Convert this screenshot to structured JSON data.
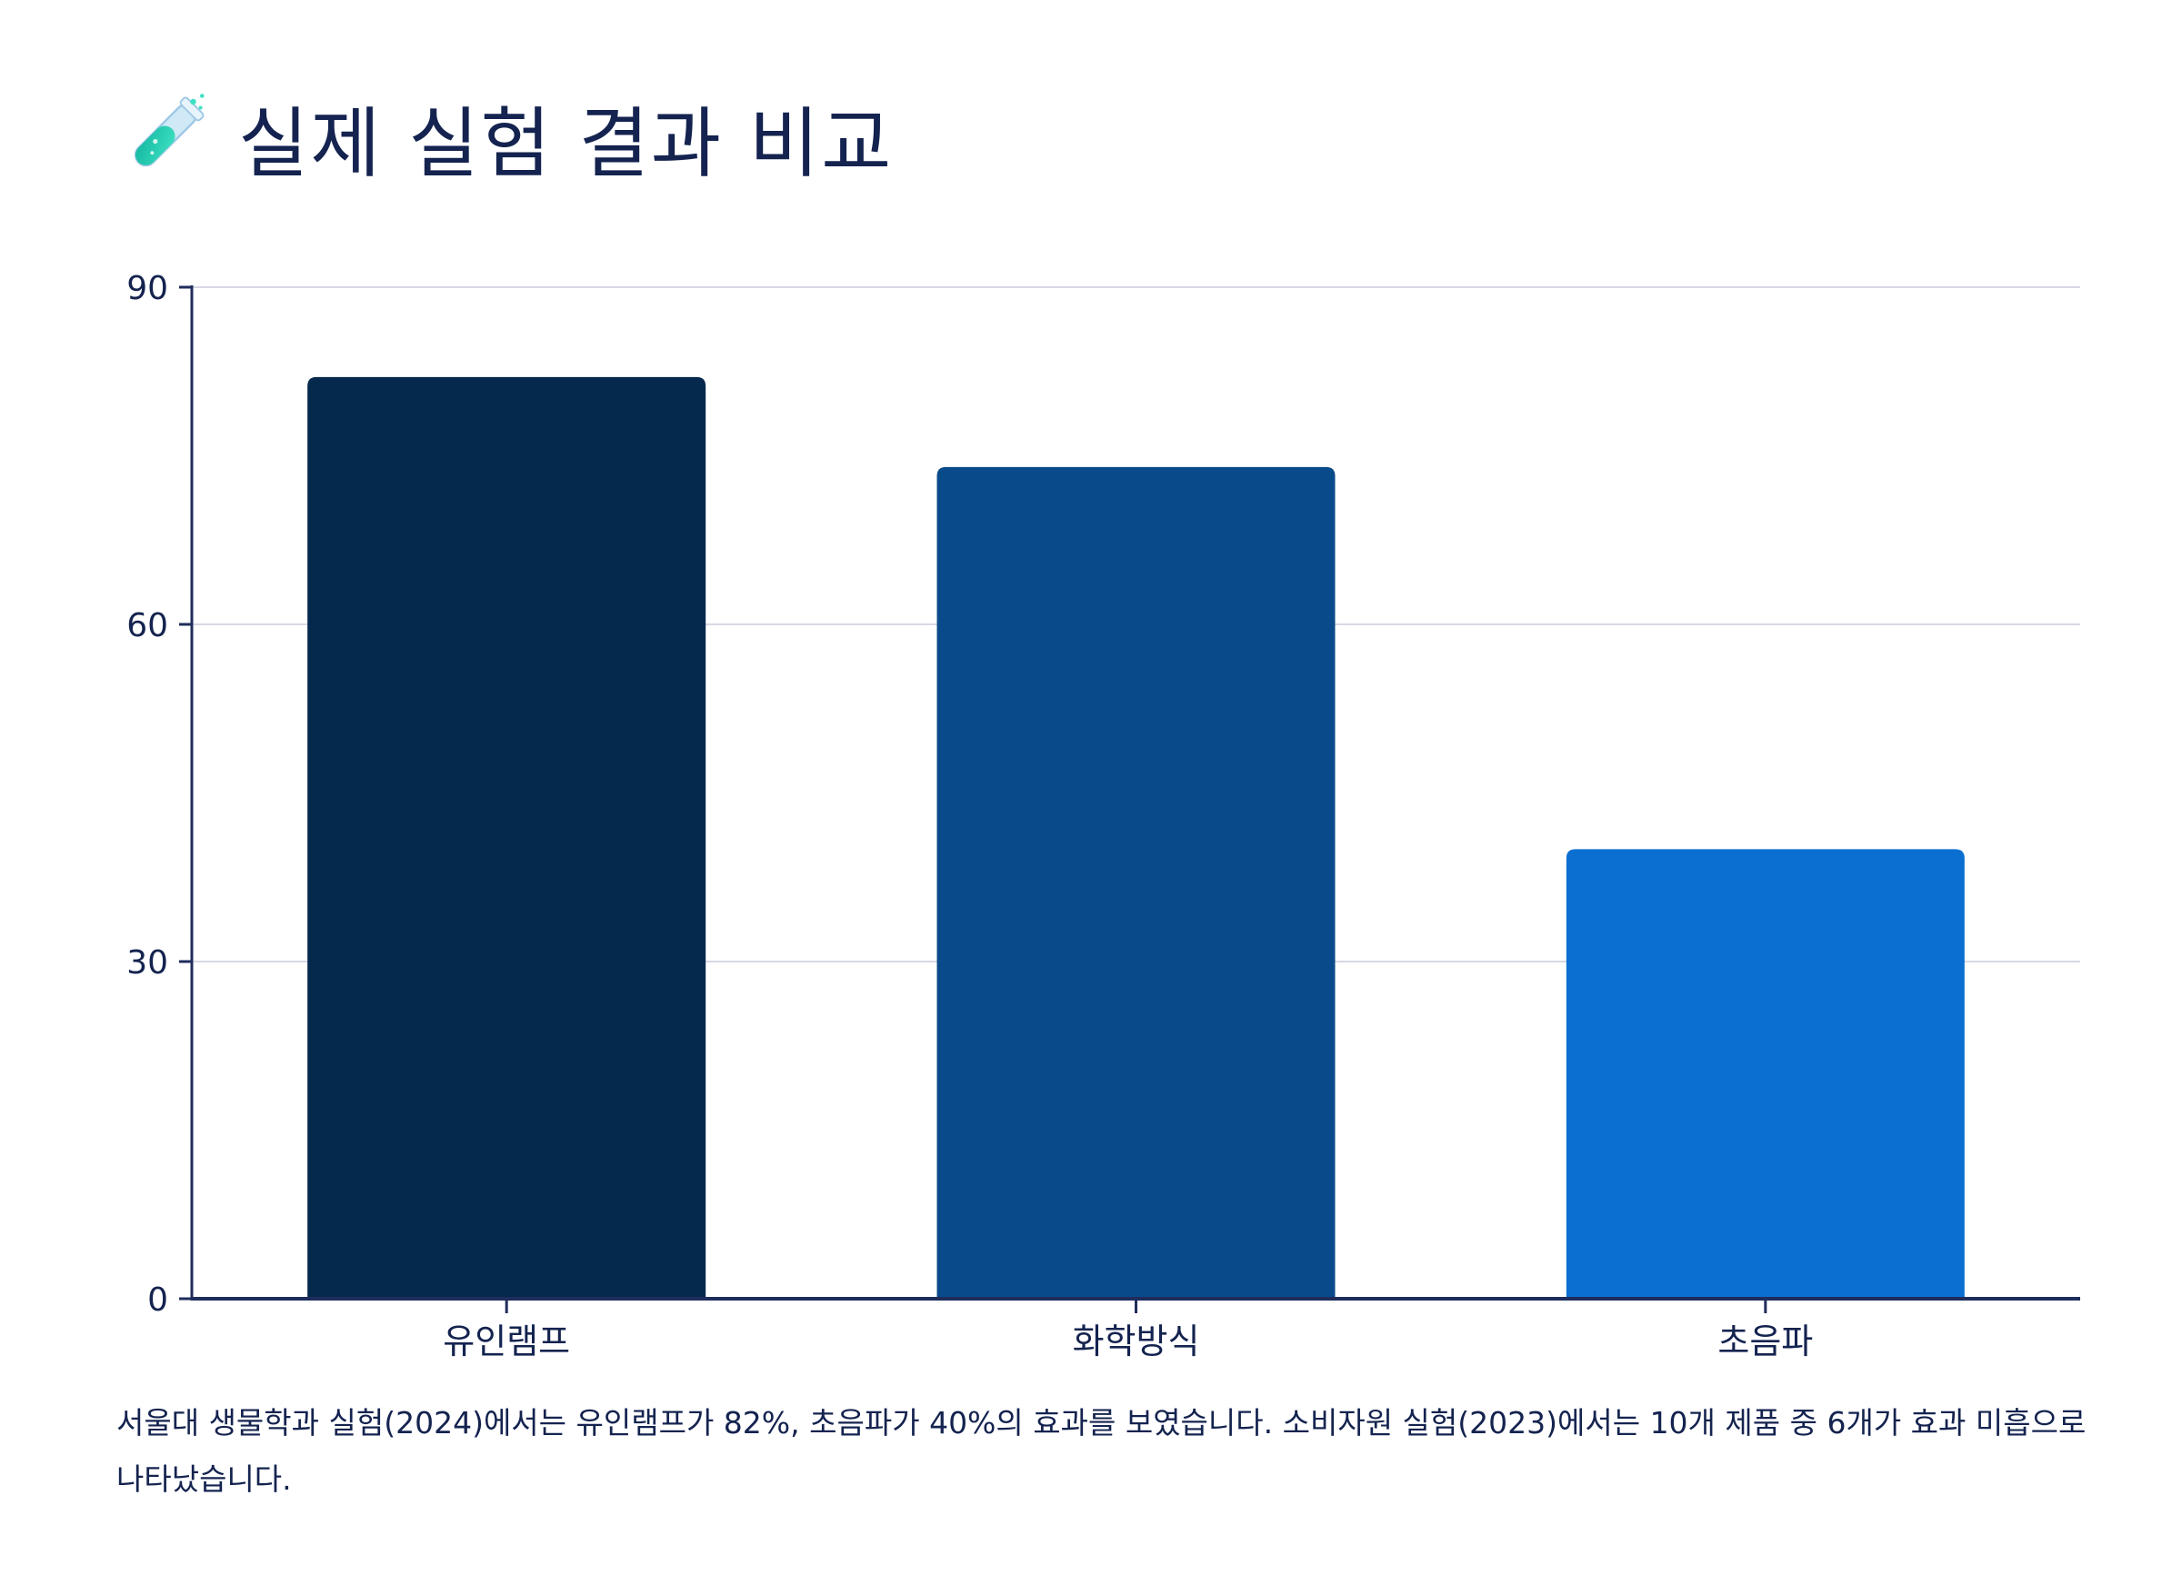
{
  "title": "실제 실험 결과 비교",
  "title_icon": "test-tube-icon",
  "caption": "서울대 생물학과 실험(2024)에서는 유인램프가 82%, 초음파가 40%의 효과를 보였습니다. 소비자원 실험(2023)에서는 10개 제품 중 6개가 효과 미흡으로 나타났습니다.",
  "colors": {
    "text": "#14234f",
    "axis": "#1f2d5c",
    "grid": "#d6d8e6",
    "bars": [
      "#05284d",
      "#094b8a",
      "#0b6fd1"
    ]
  },
  "chart_data": {
    "type": "bar",
    "categories": [
      "유인램프",
      "화학방식",
      "초음파"
    ],
    "values": [
      82,
      74,
      40
    ],
    "yticks": [
      0,
      30,
      60,
      90
    ],
    "ylim": [
      0,
      90
    ],
    "grid": true,
    "xlabel": "",
    "ylabel": ""
  }
}
